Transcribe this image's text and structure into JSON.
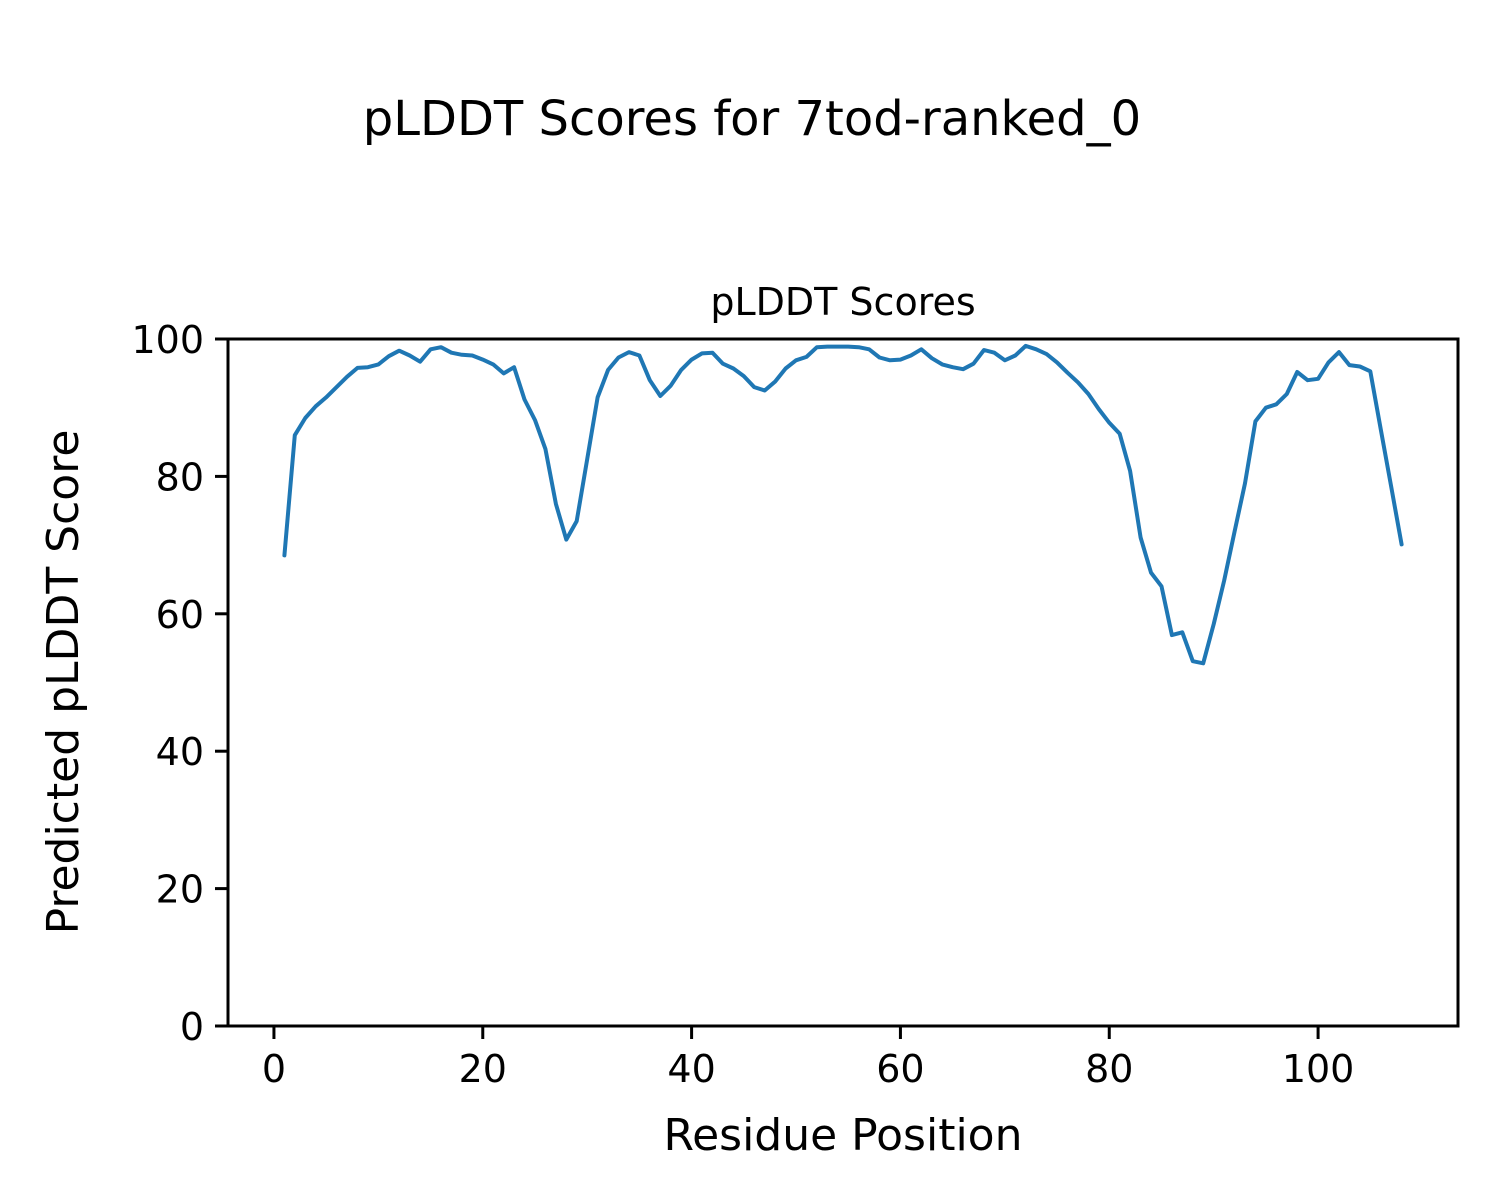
{
  "chart_data": {
    "type": "line",
    "suptitle": "pLDDT Scores for 7tod-ranked_0",
    "title": "pLDDT Scores",
    "xlabel": "Residue Position",
    "ylabel": "Predicted pLDDT Score",
    "xticks": [
      0,
      20,
      40,
      60,
      80,
      100
    ],
    "yticks": [
      0,
      20,
      40,
      60,
      80,
      100
    ],
    "xlim": [
      -4.4,
      113.4
    ],
    "ylim": [
      0,
      100
    ],
    "legend": "none",
    "grid": false,
    "line_color": "#1f77b4",
    "line_width": 4,
    "x": [
      1,
      2,
      3,
      4,
      5,
      6,
      7,
      8,
      9,
      10,
      11,
      12,
      13,
      14,
      15,
      16,
      17,
      18,
      19,
      20,
      21,
      22,
      23,
      24,
      25,
      26,
      27,
      28,
      29,
      30,
      31,
      32,
      33,
      34,
      35,
      36,
      37,
      38,
      39,
      40,
      41,
      42,
      43,
      44,
      45,
      46,
      47,
      48,
      49,
      50,
      51,
      52,
      53,
      54,
      55,
      56,
      57,
      58,
      59,
      60,
      61,
      62,
      63,
      64,
      65,
      66,
      67,
      68,
      69,
      70,
      71,
      72,
      73,
      74,
      75,
      76,
      77,
      78,
      79,
      80,
      81,
      82,
      83,
      84,
      85,
      86,
      87,
      88,
      89,
      90,
      91,
      92,
      93,
      94,
      95,
      96,
      97,
      98,
      99,
      100,
      101,
      102,
      103,
      104,
      105,
      106,
      107,
      108
    ],
    "values": [
      68.5,
      86.0,
      88.5,
      90.2,
      91.5,
      93.0,
      94.5,
      95.8,
      95.9,
      96.3,
      97.5,
      98.3,
      97.6,
      96.7,
      98.5,
      98.8,
      98.0,
      97.7,
      97.6,
      97.0,
      96.3,
      95.0,
      95.9,
      91.2,
      88.2,
      84.0,
      76.0,
      70.8,
      73.5,
      82.5,
      91.5,
      95.5,
      97.3,
      98.1,
      97.6,
      94.0,
      91.7,
      93.2,
      95.5,
      97.0,
      97.9,
      98.0,
      96.4,
      95.7,
      94.6,
      93.0,
      92.5,
      93.8,
      95.7,
      96.9,
      97.4,
      98.8,
      98.9,
      98.9,
      98.9,
      98.8,
      98.5,
      97.3,
      96.9,
      97.0,
      97.6,
      98.5,
      97.2,
      96.3,
      95.9,
      95.6,
      96.4,
      98.4,
      98.0,
      96.9,
      97.6,
      99.0,
      98.5,
      97.8,
      96.6,
      95.1,
      93.7,
      92.0,
      89.8,
      87.8,
      86.2,
      80.8,
      71.1,
      66.0,
      64.0,
      56.9,
      57.3,
      53.1,
      52.8,
      58.5,
      64.8,
      72.0,
      79.0,
      88.0,
      90.0,
      90.5,
      92.0,
      95.2,
      94.0,
      94.2,
      96.6,
      98.1,
      96.2,
      96.0,
      95.3,
      86.9,
      78.5,
      70.1
    ]
  }
}
